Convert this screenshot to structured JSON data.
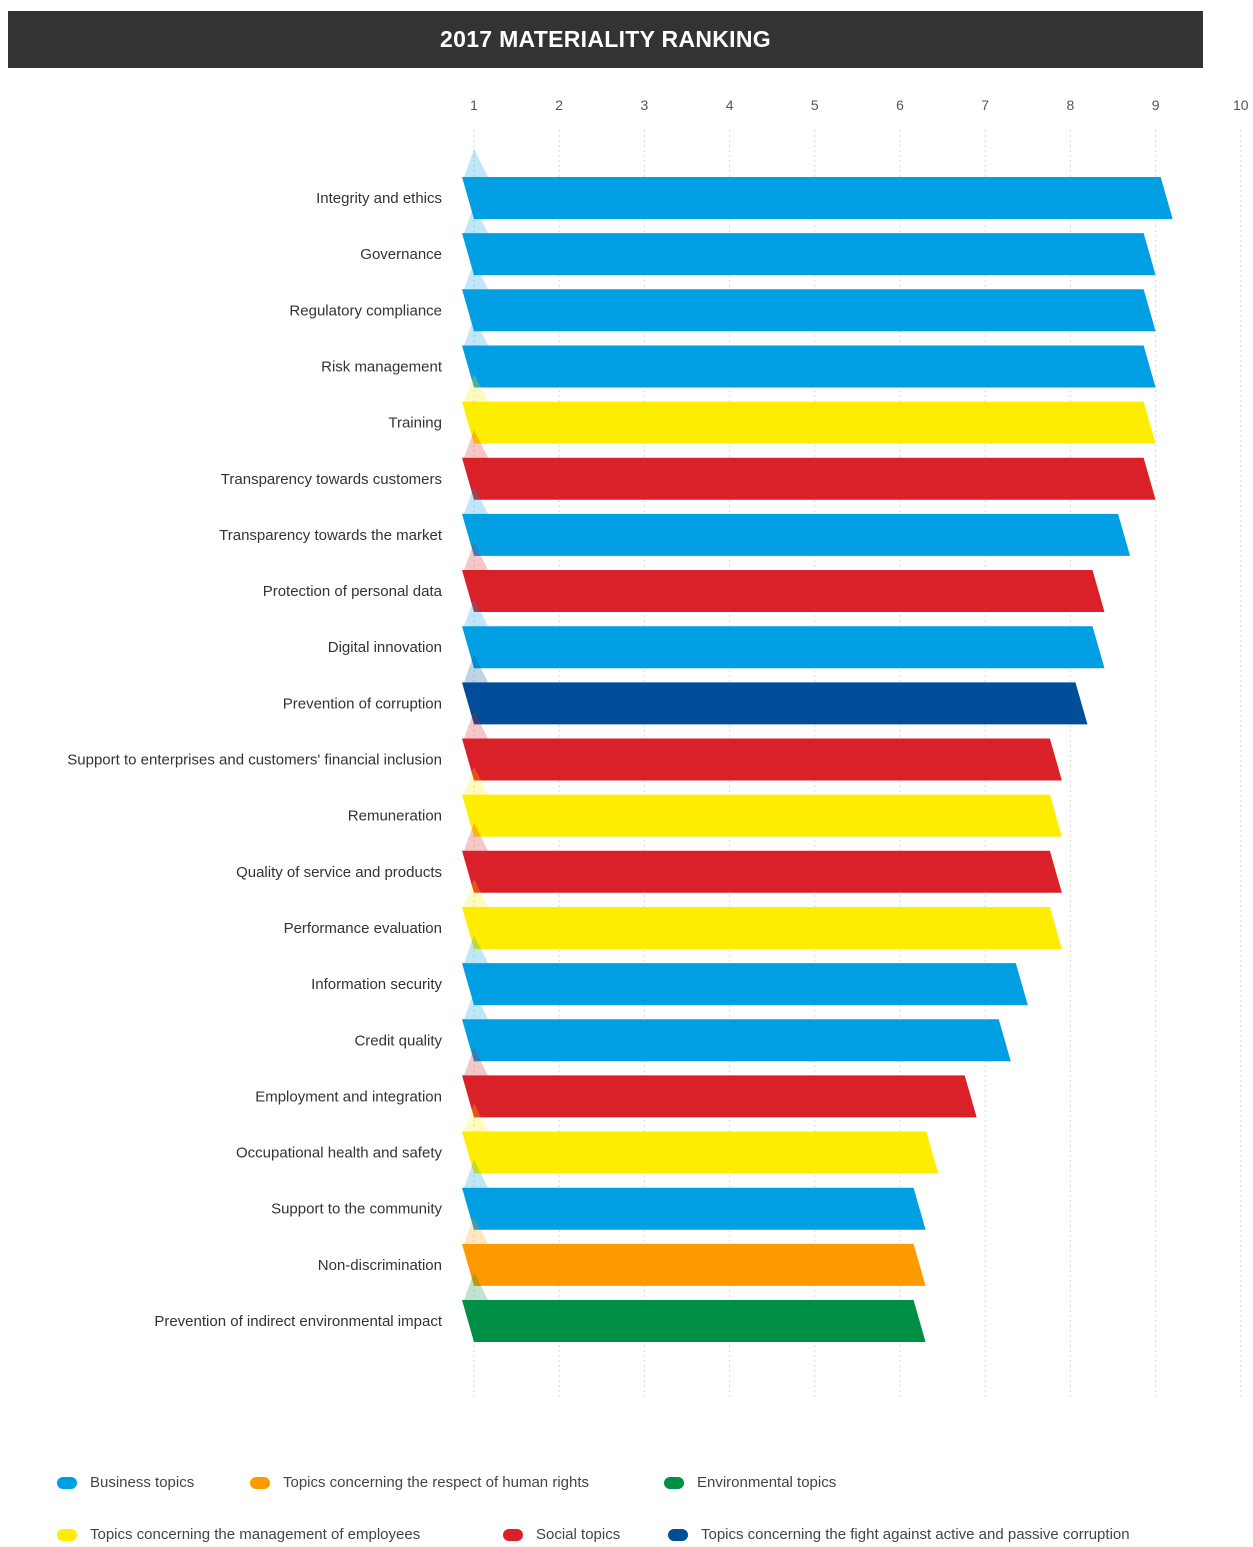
{
  "chart_data": {
    "type": "bar",
    "orientation": "horizontal",
    "title": "2017 MATERIALITY RANKING",
    "xlim": [
      1,
      10
    ],
    "x_ticks": [
      "1",
      "2",
      "3",
      "4",
      "5",
      "6",
      "7",
      "8",
      "9",
      "10"
    ],
    "grid": true,
    "categories": [
      "Integrity and ethics",
      "Governance",
      "Regulatory compliance",
      "Risk management",
      "Training",
      "Transparency towards customers",
      "Transparency towards the market",
      "Protection of personal data",
      "Digital innovation",
      "Prevention of corruption",
      "Support to enterprises and customers' financial inclusion",
      "Remuneration",
      "Quality of service and products",
      "Performance evaluation",
      "Information security",
      "Credit quality",
      "Employment and integration",
      "Occupational health and safety",
      "Support to the community",
      "Non-discrimination",
      "Prevention of indirect environmental impact"
    ],
    "values": [
      9.2,
      9.0,
      9.0,
      9.0,
      9.0,
      9.0,
      8.7,
      8.4,
      8.4,
      8.2,
      7.9,
      7.9,
      7.9,
      7.9,
      7.5,
      7.3,
      6.9,
      6.45,
      6.3,
      6.3,
      6.3
    ],
    "groups": [
      "business",
      "business",
      "business",
      "business",
      "employees",
      "social",
      "business",
      "social",
      "business",
      "corruption",
      "social",
      "employees",
      "social",
      "employees",
      "business",
      "business",
      "social",
      "employees",
      "business",
      "human_rights",
      "environmental"
    ],
    "legend_placement": "bottom",
    "legend": [
      {
        "key": "business",
        "label": "Business topics",
        "color": "#009ee3"
      },
      {
        "key": "human_rights",
        "label": "Topics concerning the respect of human rights",
        "color": "#fd9a00"
      },
      {
        "key": "environmental",
        "label": "Environmental topics",
        "color": "#008f45"
      },
      {
        "key": "employees",
        "label": "Topics concerning the management of employees",
        "color": "#ffed00"
      },
      {
        "key": "social",
        "label": "Social topics",
        "color": "#da2129"
      },
      {
        "key": "corruption",
        "label": "Topics concerning the fight against active and passive corruption",
        "color": "#004e9a"
      }
    ]
  }
}
